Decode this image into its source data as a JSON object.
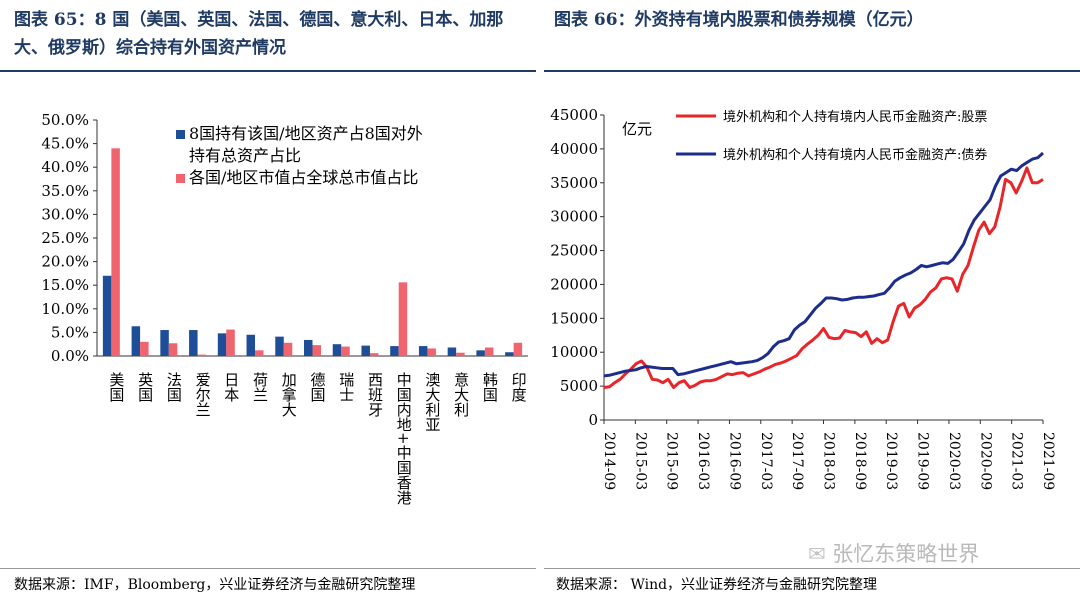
{
  "left_panel": {
    "title": "图表 65：8 国（美国、英国、法国、德国、意大利、日本、加那大、俄罗斯）综合持有外国资产情况",
    "source": "数据来源：IMF，Bloomberg，兴业证券经济与金融研究院整理"
  },
  "right_panel": {
    "title": "图表 66：外资持有境内股票和债券规模（亿元）",
    "source": "数据来源：   Wind，兴业证券经济与金融研究院整理"
  },
  "watermark": "张忆东策略世界",
  "chart_data": [
    {
      "type": "bar",
      "categories": [
        "美国",
        "英国",
        "法国",
        "爱尔兰",
        "日本",
        "荷兰",
        "加拿大",
        "德国",
        "瑞士",
        "西班牙",
        "中国内地+中国香港",
        "澳大利亚",
        "意大利",
        "韩国",
        "印度"
      ],
      "series": [
        {
          "name": "8国持有该国/地区资产占8国对外持有总资产占比",
          "color": "#1f4e99",
          "values": [
            17.0,
            6.3,
            5.5,
            5.5,
            4.8,
            4.5,
            4.1,
            3.4,
            2.5,
            2.2,
            2.1,
            2.1,
            1.8,
            1.2,
            0.8
          ]
        },
        {
          "name": "各国/地区市值占全球总市值占比",
          "color": "#f0646e",
          "values": [
            44.0,
            3.0,
            2.7,
            0.3,
            5.6,
            1.2,
            2.8,
            2.3,
            2.0,
            0.6,
            15.6,
            1.6,
            0.7,
            1.8,
            2.8
          ]
        }
      ],
      "yticks": [
        "0.0%",
        "5.0%",
        "10.0%",
        "15.0%",
        "20.0%",
        "25.0%",
        "30.0%",
        "35.0%",
        "40.0%",
        "45.0%",
        "50.0%"
      ],
      "ylim": [
        0,
        50
      ],
      "legend": "top-right"
    },
    {
      "type": "line",
      "ylabel": "亿元",
      "ylim": [
        0,
        45000
      ],
      "yticks": [
        "0",
        "5000",
        "10000",
        "15000",
        "20000",
        "25000",
        "30000",
        "35000",
        "40000",
        "45000"
      ],
      "xticks": [
        "2014-09",
        "2015-03",
        "2015-09",
        "2016-03",
        "2016-09",
        "2017-03",
        "2017-09",
        "2018-03",
        "2018-09",
        "2019-03",
        "2019-09",
        "2020-03",
        "2020-09",
        "2021-03",
        "2021-09"
      ],
      "legend": "top-left",
      "series": [
        {
          "name": "境外机构和个人持有境内人民币金融资产:股票",
          "color": "#e8262a",
          "values": [
            4800,
            4900,
            5500,
            6000,
            6800,
            7500,
            8300,
            8700,
            7800,
            6000,
            5900,
            5500,
            6000,
            4800,
            5500,
            5800,
            4800,
            5100,
            5600,
            5800,
            5800,
            6000,
            6400,
            6800,
            6700,
            6900,
            7000,
            6500,
            6800,
            7100,
            7500,
            7800,
            8200,
            8400,
            8700,
            9100,
            9500,
            10500,
            11200,
            11800,
            12500,
            13500,
            12200,
            12000,
            12100,
            13200,
            13000,
            12900,
            12300,
            13000,
            11300,
            12000,
            11400,
            11800,
            14500,
            16800,
            17200,
            15200,
            16500,
            17000,
            17800,
            18900,
            19500,
            20800,
            21000,
            20800,
            19000,
            21500,
            22800,
            25500,
            28000,
            29200,
            27500,
            28500,
            31500,
            35500,
            35000,
            33500,
            35200,
            37200,
            35000,
            35000,
            35500
          ]
        },
        {
          "name": "境外机构和个人持有境内人民币金融资产:债券",
          "color": "#1c2d8c",
          "values": [
            6500,
            6600,
            6800,
            7000,
            7200,
            7300,
            7400,
            7700,
            7900,
            7800,
            7700,
            7600,
            7600,
            7600,
            6700,
            6800,
            7000,
            7200,
            7400,
            7600,
            7800,
            8000,
            8200,
            8400,
            8600,
            8300,
            8400,
            8500,
            8600,
            8800,
            9200,
            9800,
            10800,
            11500,
            11700,
            12000,
            13300,
            14000,
            14500,
            15500,
            16500,
            17200,
            18000,
            18000,
            17900,
            17700,
            17800,
            18000,
            18100,
            18100,
            18200,
            18300,
            18500,
            18700,
            19500,
            20500,
            21000,
            21400,
            21700,
            22200,
            22800,
            22600,
            22800,
            23000,
            23200,
            23100,
            23700,
            24800,
            26000,
            28000,
            29500,
            30500,
            31500,
            32500,
            34500,
            36000,
            36500,
            37000,
            36800,
            37500,
            38000,
            38500,
            38700,
            39400
          ]
        }
      ]
    }
  ]
}
